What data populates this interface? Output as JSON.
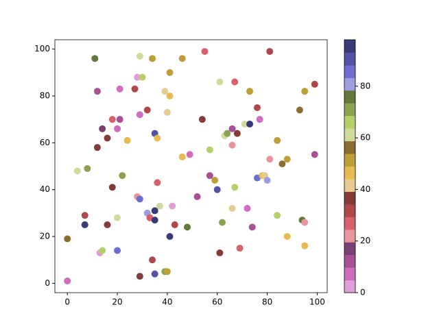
{
  "chart_data": {
    "type": "scatter",
    "x": [
      11,
      29,
      34,
      46,
      55,
      81,
      28,
      30,
      41,
      12,
      21,
      27,
      39,
      41,
      61,
      67,
      73,
      95,
      99,
      18,
      21,
      32,
      29,
      40,
      54,
      76,
      93,
      14,
      20,
      12,
      16,
      24,
      35,
      36,
      63,
      64,
      66,
      68,
      71,
      73,
      77,
      66,
      84,
      4,
      8,
      22,
      18,
      46,
      49,
      57,
      57,
      59,
      60,
      67,
      76,
      78,
      79,
      80,
      81,
      86,
      88,
      99,
      36,
      28,
      29,
      37,
      42,
      52,
      7,
      7,
      16,
      20,
      32,
      33,
      35,
      35,
      43,
      48,
      41,
      62,
      66,
      72,
      74,
      84,
      88,
      94,
      95,
      95,
      0,
      13,
      14,
      20,
      34,
      35,
      39,
      40,
      29,
      61,
      69,
      0
    ],
    "values": [
      96,
      97,
      96,
      96,
      99,
      99,
      88,
      88,
      90,
      82,
      83,
      83,
      82,
      80,
      86,
      86,
      82,
      82,
      85,
      70,
      70,
      74,
      72,
      73,
      70,
      75,
      74,
      66,
      66,
      58,
      62,
      61,
      64,
      62,
      63,
      64,
      66,
      64,
      68,
      68,
      70,
      59,
      61,
      48,
      49,
      46,
      41,
      54,
      55,
      57,
      46,
      44,
      40,
      41,
      45,
      46,
      46,
      44,
      53,
      51,
      53,
      55,
      43,
      37,
      36,
      33,
      33,
      37,
      29,
      25,
      25,
      28,
      30,
      28,
      31,
      27,
      25,
      24,
      20,
      26,
      32,
      32,
      24,
      29,
      20,
      27,
      26,
      16,
      19,
      13,
      14,
      14,
      10,
      4,
      5,
      5,
      3,
      13,
      15,
      1
    ],
    "c": [
      76,
      61,
      52,
      52,
      27,
      32,
      2,
      66,
      52,
      12,
      7,
      32,
      42,
      47,
      61,
      27,
      52,
      52,
      32,
      27,
      12,
      32,
      7,
      42,
      37,
      32,
      56,
      17,
      7,
      37,
      37,
      47,
      91,
      47,
      61,
      71,
      12,
      37,
      61,
      96,
      7,
      22,
      52,
      61,
      71,
      71,
      37,
      47,
      7,
      66,
      12,
      52,
      91,
      66,
      86,
      47,
      42,
      81,
      22,
      56,
      52,
      12,
      27,
      22,
      86,
      61,
      2,
      12,
      32,
      96,
      37,
      61,
      81,
      27,
      96,
      96,
      32,
      76,
      96,
      71,
      42,
      7,
      12,
      66,
      47,
      76,
      22,
      47,
      56,
      2,
      66,
      86,
      32,
      91,
      71,
      52,
      37,
      37,
      27,
      7
    ],
    "colormap": [
      "#de9ed6",
      "#ce6dbd",
      "#a55194",
      "#7b4173",
      "#e7969c",
      "#d6616b",
      "#ad494a",
      "#843c39",
      "#e7cb94",
      "#e7ba52",
      "#bd9e39",
      "#8c6d31",
      "#cedb9c",
      "#b5cf6b",
      "#8ca252",
      "#637939",
      "#9c9ede",
      "#6b6ecf",
      "#5254a3",
      "#393b79"
    ],
    "clim": [
      0,
      98
    ],
    "cticks": [
      0,
      20,
      40,
      60,
      80
    ],
    "xlim": [
      -5,
      104
    ],
    "ylim": [
      -4,
      104
    ],
    "xticks": [
      0,
      20,
      40,
      60,
      80,
      100
    ],
    "yticks": [
      0,
      20,
      40,
      60,
      80,
      100
    ]
  }
}
